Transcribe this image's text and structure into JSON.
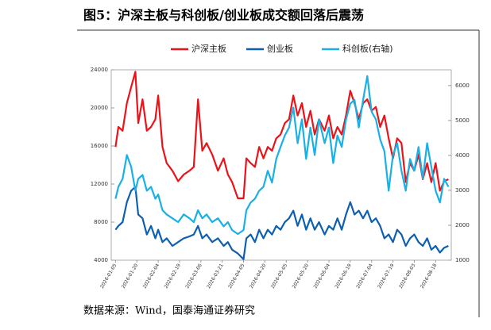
{
  "chart_data": {
    "type": "line",
    "title": "图5：沪深主板与科创板/创业板成交额回落后震荡",
    "source": "数据来源：Wind，国泰海通证券研究",
    "x": [
      "2026-01-05",
      "2026-01-07",
      "2026-01-10",
      "2026-01-13",
      "2026-01-16",
      "2026-01-19",
      "2026-01-21",
      "2026-01-24",
      "2026-01-27",
      "2026-01-30",
      "2026-02-02",
      "2026-02-04",
      "2026-02-07",
      "2026-02-10",
      "2026-02-14",
      "2026-02-18",
      "2026-02-22",
      "2026-02-26",
      "2026-03-01",
      "2026-03-04",
      "2026-03-07",
      "2026-03-10",
      "2026-03-14",
      "2026-03-18",
      "2026-03-22",
      "2026-03-25",
      "2026-03-28",
      "2026-04-01",
      "2026-04-05",
      "2026-04-07",
      "2026-04-10",
      "2026-04-13",
      "2026-04-16",
      "2026-04-19",
      "2026-04-22",
      "2026-04-25",
      "2026-04-28",
      "2026-05-01",
      "2026-05-04",
      "2026-05-07",
      "2026-05-10",
      "2026-05-13",
      "2026-05-16",
      "2026-05-19",
      "2026-05-22",
      "2026-05-25",
      "2026-05-28",
      "2026-06-01",
      "2026-06-04",
      "2026-06-07",
      "2026-06-10",
      "2026-06-13",
      "2026-06-16",
      "2026-06-19",
      "2026-06-22",
      "2026-06-25",
      "2026-06-28",
      "2026-07-01",
      "2026-07-04",
      "2026-07-07",
      "2026-07-10",
      "2026-07-13",
      "2026-07-16",
      "2026-07-19",
      "2026-07-22",
      "2026-07-25",
      "2026-07-28",
      "2026-07-31",
      "2026-08-03",
      "2026-08-06",
      "2026-08-09",
      "2026-08-12",
      "2026-08-15",
      "2026-08-18",
      "2026-08-21",
      "2026-08-24",
      "2026-08-27"
    ],
    "series": [
      {
        "name": "沪深主板",
        "color": "#e8141a",
        "axis": "y",
        "values": [
          15900,
          18000,
          17600,
          20500,
          22200,
          23800,
          18400,
          20900,
          17600,
          18000,
          18800,
          21300,
          15900,
          14200,
          13400,
          12300,
          13000,
          13400,
          13800,
          20900,
          15500,
          16300,
          15100,
          13400,
          14700,
          13000,
          12200,
          10500,
          10500,
          14700,
          14200,
          13800,
          15900,
          14700,
          15900,
          15500,
          16800,
          17200,
          18400,
          18800,
          21300,
          19200,
          20500,
          18000,
          19700,
          17200,
          18800,
          17600,
          19200,
          16800,
          18000,
          17200,
          19200,
          21800,
          20500,
          18800,
          20500,
          20900,
          19700,
          20100,
          18000,
          19200,
          16800,
          14700,
          16800,
          16300,
          12200,
          14200,
          13400,
          15100,
          12500,
          14200,
          12200,
          14200,
          11300,
          12300,
          12500
        ]
      },
      {
        "name": "创业板",
        "color": "#0e5fb0",
        "axis": "y",
        "values": [
          7200,
          7600,
          8000,
          10100,
          11300,
          11700,
          8800,
          8400,
          6700,
          7600,
          6300,
          7200,
          5900,
          6300,
          5500,
          5900,
          6300,
          6500,
          6700,
          7600,
          6300,
          6700,
          5900,
          6300,
          5500,
          5900,
          5100,
          4700,
          4100,
          6300,
          6700,
          5900,
          7200,
          6300,
          7200,
          6700,
          7600,
          7200,
          8000,
          8400,
          9200,
          7600,
          8800,
          7200,
          8400,
          7200,
          8000,
          6700,
          7600,
          7200,
          8400,
          7200,
          8800,
          10100,
          8800,
          9200,
          8400,
          9200,
          8000,
          8400,
          7600,
          6300,
          6700,
          5900,
          7200,
          6700,
          5500,
          6300,
          6700,
          5900,
          5500,
          6300,
          5100,
          5500,
          4800,
          5300,
          5500
        ]
      },
      {
        "name": "科创板(右轴)",
        "color": "#1ab0e6",
        "axis": "y2",
        "values": [
          2760,
          3100,
          3330,
          4010,
          3670,
          2990,
          3330,
          3440,
          2990,
          3100,
          2760,
          2880,
          2430,
          2310,
          2200,
          2090,
          2310,
          2200,
          2090,
          2430,
          2200,
          2310,
          2090,
          2200,
          1970,
          2090,
          1860,
          1750,
          1860,
          2430,
          2650,
          2760,
          2990,
          3100,
          3560,
          3220,
          3900,
          4240,
          4570,
          4800,
          5370,
          4350,
          5030,
          3900,
          4800,
          4010,
          5030,
          4350,
          4800,
          3780,
          4570,
          4240,
          5030,
          5480,
          5590,
          4800,
          5590,
          6270,
          5250,
          5030,
          4460,
          4120,
          2990,
          4010,
          4350,
          3560,
          2990,
          3900,
          3560,
          4240,
          3330,
          4350,
          3670,
          2990,
          2650,
          3330,
          3100
        ]
      }
    ],
    "xlim": [
      "2026-01-02",
      "2026-08-29"
    ],
    "xticks": [
      "2026-01-05",
      "2026-01-20",
      "2026-02-04",
      "2026-02-19",
      "2026-03-06",
      "2026-03-21",
      "2026-04-05",
      "2026-04-20",
      "2026-05-05",
      "2026-05-20",
      "2026-06-04",
      "2026-06-19",
      "2026-07-04",
      "2026-07-19",
      "2026-08-03",
      "2026-08-18"
    ],
    "ylim": [
      4000,
      24000
    ],
    "yticks": [
      4000,
      8000,
      12000,
      16000,
      20000,
      24000
    ],
    "y2lim": [
      1000,
      6450
    ],
    "y2ticks": [
      1000,
      2000,
      3000,
      4000,
      5000,
      6000
    ],
    "legend": "top"
  }
}
